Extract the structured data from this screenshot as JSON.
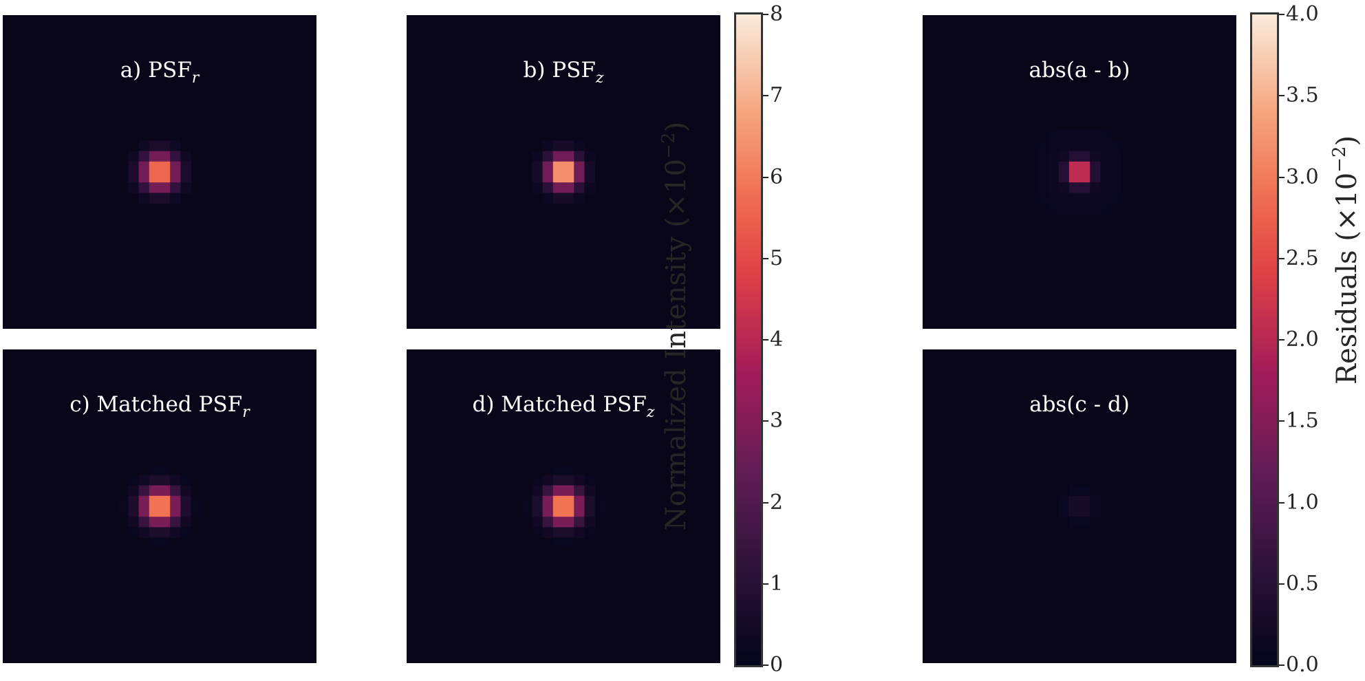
{
  "panels": [
    {
      "id": "a",
      "title_main": "a) PSF",
      "title_sub": "r",
      "peak": 6.6,
      "sigma": 1.15
    },
    {
      "id": "b",
      "title_main": "b) PSF",
      "title_sub": "z",
      "peak": 7.8,
      "sigma": 1.05
    },
    {
      "id": "ab",
      "title_main": "abs(a - b)",
      "title_sub": "",
      "peak": 3.0,
      "sigma": 0.75
    },
    {
      "id": "c",
      "title_main": "c) Matched PSF",
      "title_sub": "r",
      "peak": 6.9,
      "sigma": 1.15
    },
    {
      "id": "d",
      "title_main": "d) Matched PSF",
      "title_sub": "z",
      "peak": 6.9,
      "sigma": 1.15
    },
    {
      "id": "cd",
      "title_main": "abs(c - d)",
      "title_sub": "",
      "peak": 0.3,
      "sigma": 0.9
    }
  ],
  "colorbars": [
    {
      "label_main": "Normalized Intensity (×10",
      "label_sup": "−2",
      "label_end": ")",
      "ticks": [
        "0",
        "1",
        "2",
        "3",
        "4",
        "5",
        "6",
        "7",
        "8"
      ],
      "min": 0,
      "max": 8
    },
    {
      "label_main": "Residuals (×10",
      "label_sup": "−2",
      "label_end": ")",
      "ticks": [
        "0.0",
        "0.5",
        "1.0",
        "1.5",
        "2.0",
        "2.5",
        "3.0",
        "3.5",
        "4.0"
      ],
      "min": 0,
      "max": 4
    }
  ],
  "chart_data": {
    "type": "heatmap",
    "colormap": "rocket",
    "panels": [
      {
        "title": "a) PSF_r",
        "peak_value": 6.6,
        "units": "×10^-2",
        "colorbar": 0
      },
      {
        "title": "b) PSF_z",
        "peak_value": 7.8,
        "units": "×10^-2",
        "colorbar": 0
      },
      {
        "title": "abs(a - b)",
        "peak_value": 3.0,
        "units": "×10^-2",
        "colorbar": 1
      },
      {
        "title": "c) Matched PSF_r",
        "peak_value": 6.9,
        "units": "×10^-2",
        "colorbar": 0
      },
      {
        "title": "d) Matched PSF_z",
        "peak_value": 6.9,
        "units": "×10^-2",
        "colorbar": 0
      },
      {
        "title": "abs(c - d)",
        "peak_value": 0.3,
        "units": "×10^-2",
        "colorbar": 1
      }
    ],
    "colorbar_ranges": [
      [
        0,
        8
      ],
      [
        0,
        4
      ]
    ]
  }
}
